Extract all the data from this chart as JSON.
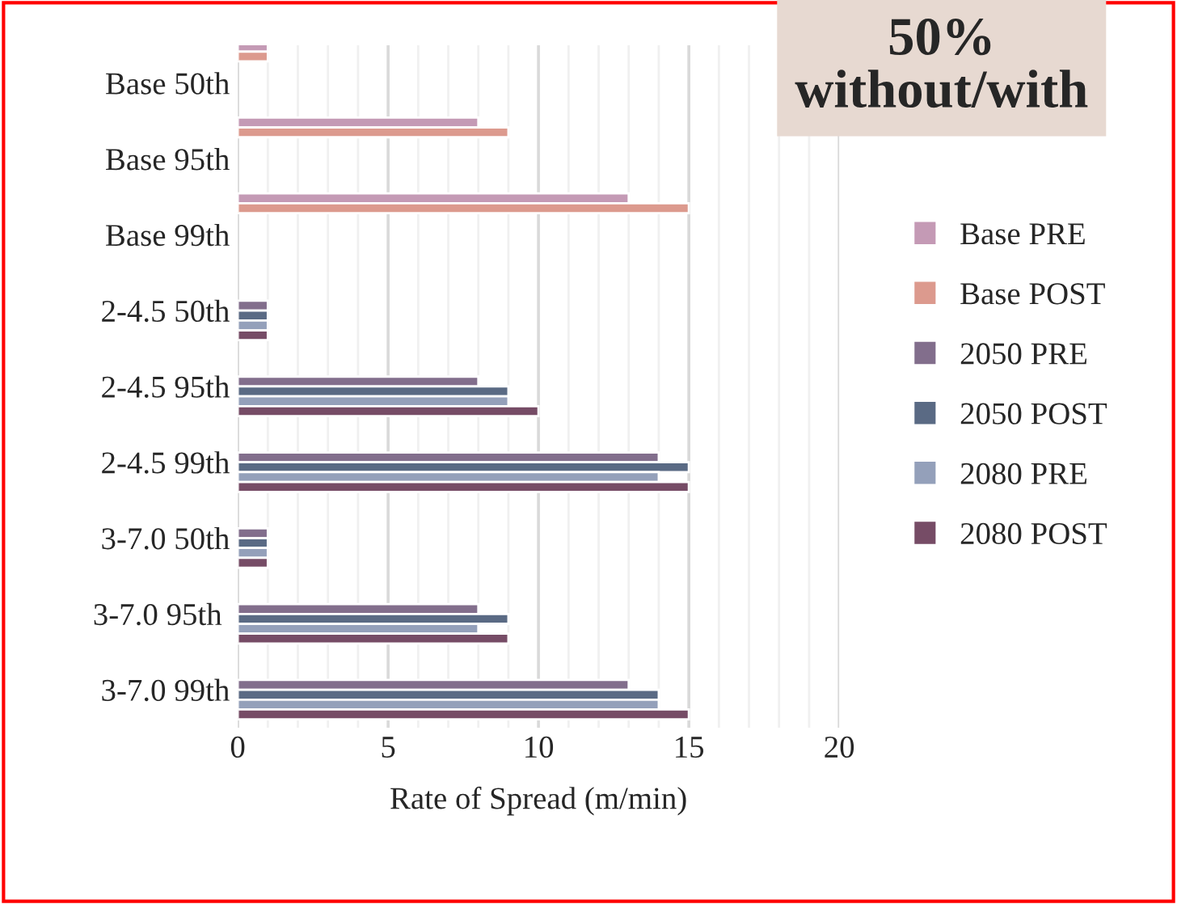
{
  "chart_data": {
    "type": "bar",
    "orientation": "horizontal",
    "xlabel": "Rate of Spread (m/min)",
    "categories": [
      "Base 50th",
      "Base 95th",
      "Base 99th",
      "2-4.5 50th",
      "2-4.5 95th",
      "2-4.5 99th",
      "3-7.0 50th",
      "3-7.0 95th ",
      "3-7.0 99th"
    ],
    "series": [
      {
        "name": "Base PRE",
        "color": "#c49ab5",
        "values": [
          1,
          8,
          13,
          null,
          null,
          null,
          null,
          null,
          null
        ]
      },
      {
        "name": "Base POST",
        "color": "#dc9a8e",
        "values": [
          1,
          9,
          15,
          null,
          null,
          null,
          null,
          null,
          null
        ]
      },
      {
        "name": "2050 PRE",
        "color": "#826e8c",
        "values": [
          null,
          null,
          null,
          1,
          8,
          14,
          1,
          8,
          13
        ]
      },
      {
        "name": "2050 POST",
        "color": "#5a6a84",
        "values": [
          null,
          null,
          null,
          1,
          9,
          15,
          1,
          9,
          14
        ]
      },
      {
        "name": "2080 PRE",
        "color": "#94a0ba",
        "values": [
          null,
          null,
          null,
          1,
          9,
          14,
          1,
          8,
          14
        ]
      },
      {
        "name": "2080 POST",
        "color": "#764c66",
        "values": [
          null,
          null,
          null,
          1,
          10,
          15,
          1,
          9,
          15
        ]
      }
    ],
    "xlim": [
      0,
      20
    ],
    "xticks": [
      0,
      5,
      10,
      15,
      20
    ],
    "grid": "x",
    "legend": "right",
    "annotations": [
      "50%\nwithout/with"
    ]
  }
}
